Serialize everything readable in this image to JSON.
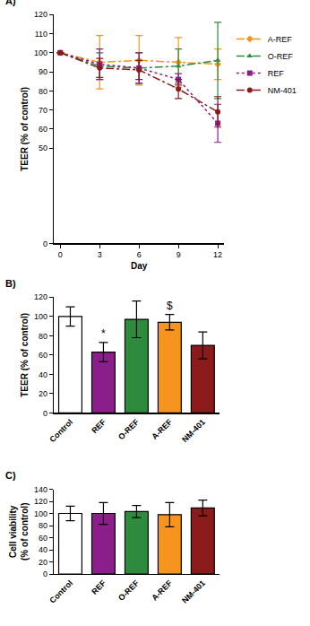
{
  "chart_data": [
    {
      "type": "line",
      "label": "A)",
      "xlabel": "Day",
      "ylabel": "TEER (% of control)",
      "x": [
        0,
        3,
        6,
        9,
        12
      ],
      "xlim": [
        -0.5,
        12.5
      ],
      "xticks": [
        0,
        3,
        6,
        9,
        12
      ],
      "ylim": [
        0,
        120
      ],
      "yticks": [
        0,
        50,
        60,
        70,
        80,
        90,
        100,
        110,
        120
      ],
      "grid": false,
      "legend": "right",
      "series": [
        {
          "name": "A-REF",
          "color": "#f7941d",
          "marker": "diamond",
          "line_style": "dashdot",
          "values": [
            100,
            95,
            96,
            95,
            94
          ],
          "errors": [
            0,
            14,
            13,
            13,
            8
          ]
        },
        {
          "name": "O-REF",
          "color": "#2e8b3e",
          "marker": "triangle-up",
          "line_style": "dashdot",
          "values": [
            100,
            93,
            92,
            93,
            96
          ],
          "errors": [
            0,
            7,
            8,
            9,
            20
          ]
        },
        {
          "name": "REF",
          "color": "#8b1e8b",
          "marker": "square",
          "line_style": "dot",
          "values": [
            100,
            94,
            92,
            86,
            63
          ],
          "errors": [
            0,
            8,
            8,
            3,
            10
          ]
        },
        {
          "name": "NM-401",
          "color": "#8b1a1a",
          "marker": "circle",
          "line_style": "dashdot",
          "values": [
            100,
            92,
            91,
            81,
            69
          ],
          "errors": [
            0,
            5,
            5,
            5,
            8
          ]
        }
      ]
    },
    {
      "type": "bar",
      "label": "B)",
      "ylabel": [
        "TEER (% of control)"
      ],
      "categories": [
        "Control",
        "REF",
        "O-REF",
        "A-REF",
        "NM-401"
      ],
      "values": [
        100,
        63,
        97,
        94,
        70
      ],
      "errors": [
        10,
        10,
        19,
        8,
        14
      ],
      "colors": [
        "#ffffff",
        "#8b1e8b",
        "#2e8b3e",
        "#f7941d",
        "#8b1a1a"
      ],
      "ylim": [
        0,
        120
      ],
      "yticks": [
        0,
        20,
        40,
        60,
        80,
        100,
        120
      ],
      "grid": false,
      "annotations": [
        {
          "category": "REF",
          "text": "*"
        },
        {
          "category": "A-REF",
          "text": "$"
        }
      ]
    },
    {
      "type": "bar",
      "label": "C)",
      "ylabel": [
        "Cell viability",
        "(% of control)"
      ],
      "categories": [
        "Control",
        "REF",
        "O-REF",
        "A-REF",
        "NM-401"
      ],
      "values": [
        100,
        100,
        103,
        98,
        109
      ],
      "errors": [
        12,
        18,
        10,
        20,
        13
      ],
      "colors": [
        "#ffffff",
        "#8b1e8b",
        "#2e8b3e",
        "#f7941d",
        "#8b1a1a"
      ],
      "ylim": [
        0,
        140
      ],
      "yticks": [
        0,
        20,
        40,
        60,
        80,
        100,
        120,
        140
      ],
      "grid": false
    }
  ]
}
